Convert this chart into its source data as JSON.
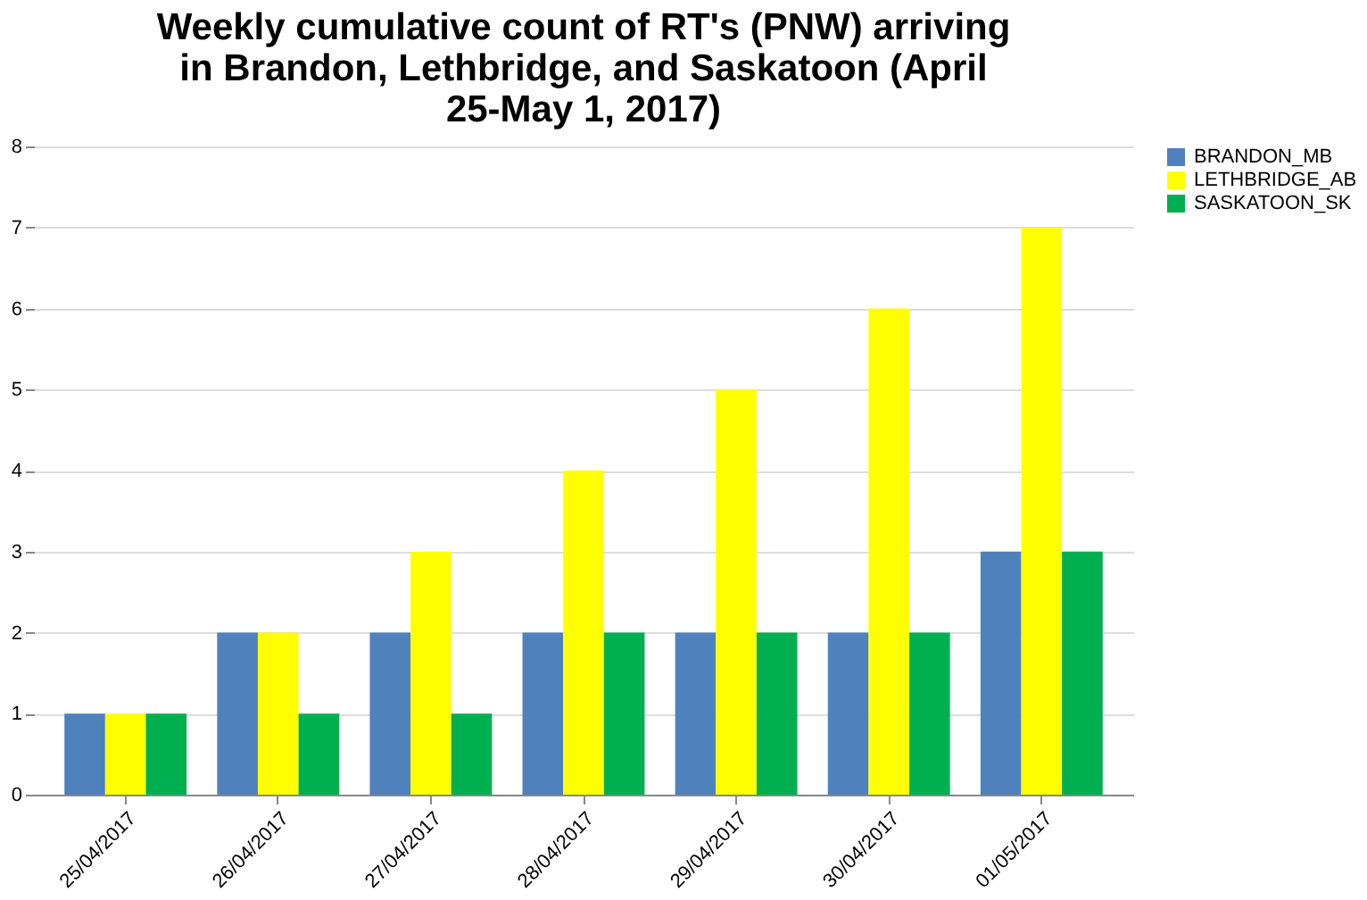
{
  "chart_data": {
    "type": "bar",
    "title": "Weekly cumulative count of RT's (PNW) arriving in Brandon, Lethbridge, and Saskatoon (April 25-May 1, 2017)",
    "categories": [
      "25/04/2017",
      "26/04/2017",
      "27/04/2017",
      "28/04/2017",
      "29/04/2017",
      "30/04/2017",
      "01/05/2017"
    ],
    "series": [
      {
        "name": "BRANDON_MB",
        "color": "#4f81bd",
        "values": [
          1,
          2,
          2,
          2,
          2,
          2,
          3
        ]
      },
      {
        "name": "LETHBRIDGE_AB",
        "color": "#ffff00",
        "values": [
          1,
          2,
          3,
          4,
          5,
          6,
          7
        ]
      },
      {
        "name": "SASKATOON_SK",
        "color": "#00b050",
        "values": [
          1,
          1,
          1,
          2,
          2,
          2,
          3
        ]
      }
    ],
    "ylim": [
      0,
      8
    ],
    "yticks": [
      0,
      1,
      2,
      3,
      4,
      5,
      6,
      7,
      8
    ],
    "grid": "y",
    "legend": "right"
  }
}
